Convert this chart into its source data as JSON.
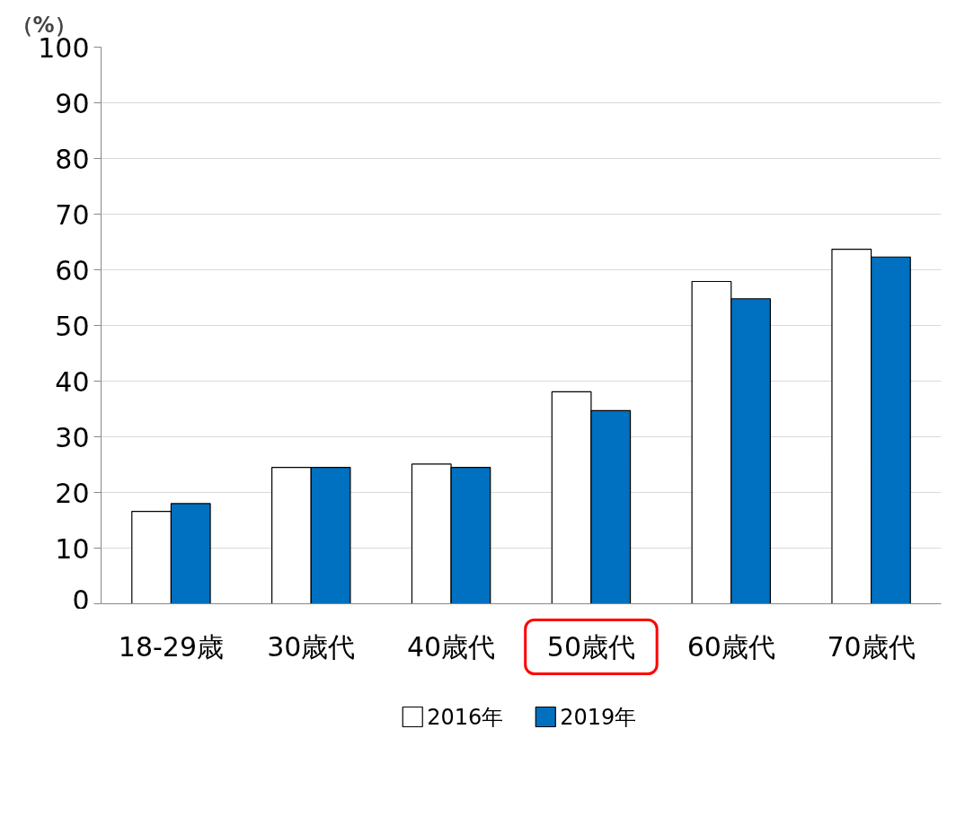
{
  "chart_data": {
    "type": "bar",
    "ylabel": "（%）",
    "categories": [
      "18-29歳",
      "30歳代",
      "40歳代",
      "50歳代",
      "60歳代",
      "70歳代"
    ],
    "series": [
      {
        "name": "2016年",
        "color": "#ffffff",
        "values": [
          16.6,
          24.5,
          25.1,
          38.1,
          57.9,
          63.7
        ]
      },
      {
        "name": "2019年",
        "color": "#0070c0",
        "values": [
          18.0,
          24.5,
          24.5,
          34.7,
          54.8,
          62.3
        ]
      }
    ],
    "ylim": [
      0,
      100
    ],
    "yticks": [
      0,
      10,
      20,
      30,
      40,
      50,
      60,
      70,
      80,
      90,
      100
    ],
    "grid": "y",
    "legend": "bottom"
  }
}
